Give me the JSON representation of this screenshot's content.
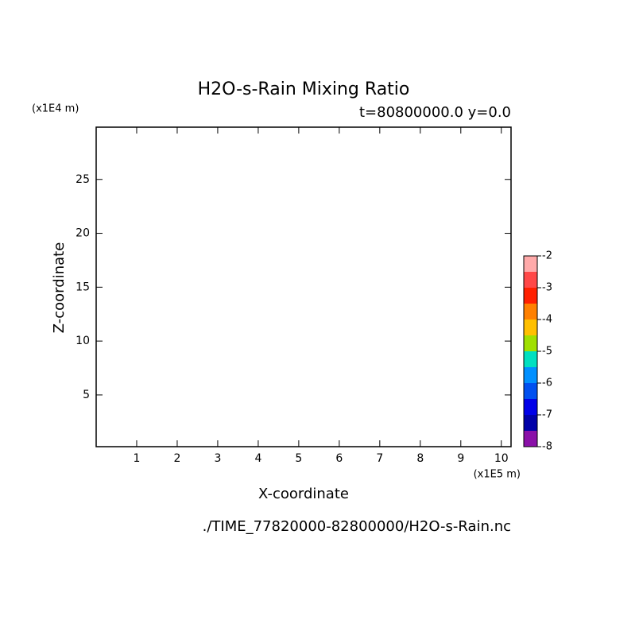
{
  "chart_data": {
    "type": "contour",
    "title": "H2O-s-Rain Mixing Ratio",
    "subtitle": "t=80800000.0 y=0.0",
    "x_label": "X-coordinate",
    "y_label": "Z-coordinate",
    "x_unit": "(x1E5 m)",
    "y_unit": "(x1E4 m)",
    "footer": "./TIME_77820000-82800000/H2O-s-Rain.nc",
    "xlim": [
      0,
      10.24
    ],
    "xticks": [
      1,
      2,
      3,
      4,
      5,
      6,
      7,
      8,
      9,
      10
    ],
    "ylim": [
      0.2,
      29.85
    ],
    "yticks": [
      5,
      10,
      15,
      20,
      25
    ],
    "colorbar": {
      "lim": [
        -8,
        -2
      ],
      "ticks": [
        -2,
        -3,
        -4,
        -5,
        -6,
        -7,
        -8
      ],
      "colors": [
        "#8a10a8",
        "#0000a8",
        "#0000e8",
        "#0050f0",
        "#0090ff",
        "#00e0c0",
        "#a0e000",
        "#ffc000",
        "#ff8000",
        "#ff2000",
        "#ff4848",
        "#ffaaaa"
      ]
    }
  }
}
